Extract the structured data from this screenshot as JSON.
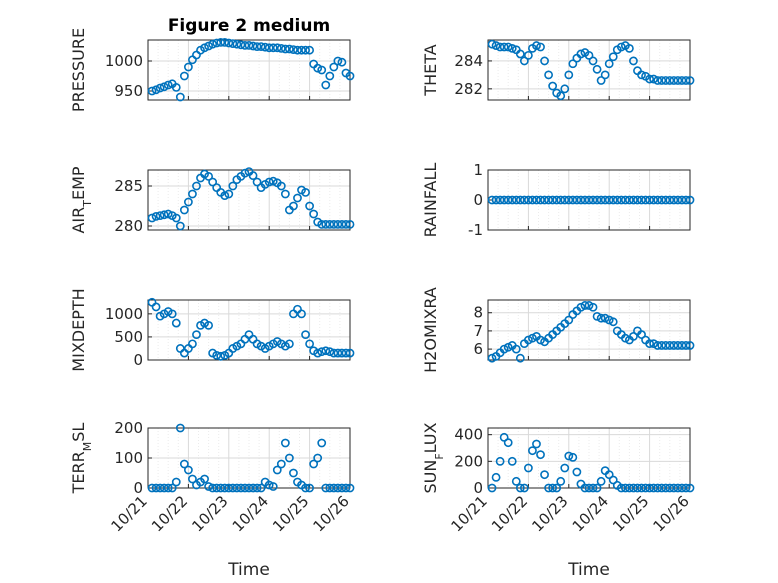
{
  "chart_data": [
    {
      "type": "scatter",
      "title": "Figure 2 medium",
      "ylabel": "PRESSURE",
      "ylim": [
        935,
        1035
      ],
      "yticks": [
        950,
        1000
      ],
      "yticklabels": [
        "950",
        "1000"
      ],
      "x": [
        0.1,
        0.2,
        0.3,
        0.4,
        0.5,
        0.6,
        0.7,
        0.8,
        0.9,
        1.0,
        1.1,
        1.2,
        1.3,
        1.4,
        1.5,
        1.6,
        1.7,
        1.8,
        1.9,
        2.0,
        2.1,
        2.2,
        2.3,
        2.4,
        2.5,
        2.6,
        2.7,
        2.8,
        2.9,
        3.0,
        3.1,
        3.2,
        3.3,
        3.4,
        3.5,
        3.6,
        3.7,
        3.8,
        3.9,
        4.0,
        4.1,
        4.2,
        4.3,
        4.4,
        4.5,
        4.6,
        4.7,
        4.8,
        4.9,
        5.0
      ],
      "series": [
        {
          "values": [
            950,
            952,
            955,
            957,
            960,
            962,
            956,
            940,
            975,
            990,
            1002,
            1010,
            1018,
            1022,
            1025,
            1028,
            1030,
            1031,
            1031,
            1030,
            1029,
            1028,
            1027,
            1026,
            1026,
            1025,
            1024,
            1024,
            1023,
            1022,
            1022,
            1022,
            1021,
            1020,
            1020,
            1019,
            1018,
            1018,
            1018,
            1018,
            995,
            988,
            985,
            960,
            975,
            990,
            1000,
            998,
            980,
            975
          ]
        }
      ]
    },
    {
      "type": "scatter",
      "ylabel": "THETA",
      "ylim": [
        281.2,
        285.5
      ],
      "yticks": [
        282,
        284
      ],
      "yticklabels": [
        "282",
        "284"
      ],
      "x": [
        0.1,
        0.2,
        0.3,
        0.4,
        0.5,
        0.6,
        0.7,
        0.8,
        0.9,
        1.0,
        1.1,
        1.2,
        1.3,
        1.4,
        1.5,
        1.6,
        1.7,
        1.8,
        1.9,
        2.0,
        2.1,
        2.2,
        2.3,
        2.4,
        2.5,
        2.6,
        2.7,
        2.8,
        2.9,
        3.0,
        3.1,
        3.2,
        3.3,
        3.4,
        3.5,
        3.6,
        3.7,
        3.8,
        3.9,
        4.0,
        4.1,
        4.2,
        4.3,
        4.4,
        4.5,
        4.6,
        4.7,
        4.8,
        4.9,
        5.0
      ],
      "series": [
        {
          "values": [
            285.2,
            285.1,
            285.0,
            285.0,
            285.0,
            284.9,
            284.8,
            284.5,
            284.0,
            284.4,
            284.9,
            285.1,
            285.0,
            284.0,
            283.0,
            282.2,
            281.7,
            281.5,
            282.0,
            283.0,
            283.8,
            284.2,
            284.5,
            284.6,
            284.4,
            284.0,
            283.4,
            282.6,
            283.0,
            283.8,
            284.3,
            284.8,
            285.0,
            285.1,
            284.9,
            284.0,
            283.3,
            283.0,
            282.9,
            282.7,
            282.7,
            282.6,
            282.6,
            282.6,
            282.6,
            282.6,
            282.6,
            282.6,
            282.6,
            282.6
          ]
        }
      ]
    },
    {
      "type": "scatter",
      "ylabel": "AIR_TEMP",
      "ylim": [
        279.5,
        287
      ],
      "yticks": [
        280,
        285
      ],
      "yticklabels": [
        "280",
        "285"
      ],
      "x": [
        0.1,
        0.2,
        0.3,
        0.4,
        0.5,
        0.6,
        0.7,
        0.8,
        0.9,
        1.0,
        1.1,
        1.2,
        1.3,
        1.4,
        1.5,
        1.6,
        1.7,
        1.8,
        1.9,
        2.0,
        2.1,
        2.2,
        2.3,
        2.4,
        2.5,
        2.6,
        2.7,
        2.8,
        2.9,
        3.0,
        3.1,
        3.2,
        3.3,
        3.4,
        3.5,
        3.6,
        3.7,
        3.8,
        3.9,
        4.0,
        4.1,
        4.2,
        4.3,
        4.4,
        4.5,
        4.6,
        4.7,
        4.8,
        4.9,
        5.0
      ],
      "series": [
        {
          "values": [
            281.0,
            281.2,
            281.3,
            281.4,
            281.5,
            281.3,
            281.0,
            280.0,
            282.0,
            283.0,
            284.0,
            285.0,
            286.0,
            286.5,
            286.2,
            285.5,
            284.8,
            284.2,
            283.8,
            284.0,
            285.0,
            285.8,
            286.2,
            286.6,
            286.8,
            286.3,
            285.5,
            284.8,
            285.2,
            285.5,
            285.6,
            285.4,
            285.0,
            284.0,
            282.0,
            282.5,
            283.5,
            284.5,
            284.2,
            282.5,
            281.5,
            280.5,
            280.2,
            280.2,
            280.2,
            280.2,
            280.2,
            280.2,
            280.2,
            280.2
          ]
        }
      ]
    },
    {
      "type": "scatter",
      "ylabel": "RAINFALL",
      "ylim": [
        -1,
        1
      ],
      "yticks": [
        -1,
        0,
        1
      ],
      "yticklabels": [
        "-1",
        "0",
        "1"
      ],
      "x": [
        0.1,
        0.2,
        0.3,
        0.4,
        0.5,
        0.6,
        0.7,
        0.8,
        0.9,
        1.0,
        1.1,
        1.2,
        1.3,
        1.4,
        1.5,
        1.6,
        1.7,
        1.8,
        1.9,
        2.0,
        2.1,
        2.2,
        2.3,
        2.4,
        2.5,
        2.6,
        2.7,
        2.8,
        2.9,
        3.0,
        3.1,
        3.2,
        3.3,
        3.4,
        3.5,
        3.6,
        3.7,
        3.8,
        3.9,
        4.0,
        4.1,
        4.2,
        4.3,
        4.4,
        4.5,
        4.6,
        4.7,
        4.8,
        4.9,
        5.0
      ],
      "series": [
        {
          "values": [
            0,
            0,
            0,
            0,
            0,
            0,
            0,
            0,
            0,
            0,
            0,
            0,
            0,
            0,
            0,
            0,
            0,
            0,
            0,
            0,
            0,
            0,
            0,
            0,
            0,
            0,
            0,
            0,
            0,
            0,
            0,
            0,
            0,
            0,
            0,
            0,
            0,
            0,
            0,
            0,
            0,
            0,
            0,
            0,
            0,
            0,
            0,
            0,
            0,
            0
          ]
        }
      ]
    },
    {
      "type": "scatter",
      "ylabel": "MIXDEPTH",
      "ylim": [
        0,
        1300
      ],
      "yticks": [
        0,
        500,
        1000
      ],
      "yticklabels": [
        "0",
        "500",
        "1000"
      ],
      "x": [
        0.1,
        0.2,
        0.3,
        0.4,
        0.5,
        0.6,
        0.7,
        0.8,
        0.9,
        1.0,
        1.1,
        1.2,
        1.3,
        1.4,
        1.5,
        1.6,
        1.7,
        1.8,
        1.9,
        2.0,
        2.1,
        2.2,
        2.3,
        2.4,
        2.5,
        2.6,
        2.7,
        2.8,
        2.9,
        3.0,
        3.1,
        3.2,
        3.3,
        3.4,
        3.5,
        3.6,
        3.7,
        3.8,
        3.9,
        4.0,
        4.1,
        4.2,
        4.3,
        4.4,
        4.5,
        4.6,
        4.7,
        4.8,
        4.9,
        5.0
      ],
      "series": [
        {
          "values": [
            1250,
            1150,
            950,
            1000,
            1050,
            1000,
            800,
            250,
            150,
            250,
            350,
            550,
            750,
            800,
            750,
            150,
            100,
            80,
            100,
            150,
            250,
            300,
            350,
            450,
            550,
            450,
            350,
            300,
            250,
            300,
            350,
            400,
            350,
            300,
            350,
            1000,
            1100,
            1000,
            550,
            350,
            200,
            150,
            180,
            200,
            180,
            150,
            150,
            150,
            150,
            150
          ]
        }
      ]
    },
    {
      "type": "scatter",
      "ylabel": "H2OMIXRA",
      "ylim": [
        5.4,
        8.7
      ],
      "yticks": [
        6,
        7,
        8
      ],
      "yticklabels": [
        "6",
        "7",
        "8"
      ],
      "x": [
        0.1,
        0.2,
        0.3,
        0.4,
        0.5,
        0.6,
        0.7,
        0.8,
        0.9,
        1.0,
        1.1,
        1.2,
        1.3,
        1.4,
        1.5,
        1.6,
        1.7,
        1.8,
        1.9,
        2.0,
        2.1,
        2.2,
        2.3,
        2.4,
        2.5,
        2.6,
        2.7,
        2.8,
        2.9,
        3.0,
        3.1,
        3.2,
        3.3,
        3.4,
        3.5,
        3.6,
        3.7,
        3.8,
        3.9,
        4.0,
        4.1,
        4.2,
        4.3,
        4.4,
        4.5,
        4.6,
        4.7,
        4.8,
        4.9,
        5.0
      ],
      "series": [
        {
          "values": [
            5.5,
            5.6,
            5.8,
            6.0,
            6.1,
            6.2,
            6.0,
            5.5,
            6.3,
            6.5,
            6.6,
            6.7,
            6.5,
            6.4,
            6.6,
            6.8,
            7.0,
            7.2,
            7.4,
            7.6,
            7.9,
            8.1,
            8.3,
            8.4,
            8.4,
            8.3,
            7.8,
            7.7,
            7.7,
            7.6,
            7.5,
            7.0,
            6.8,
            6.6,
            6.5,
            6.7,
            7.0,
            6.8,
            6.5,
            6.3,
            6.3,
            6.2,
            6.2,
            6.2,
            6.2,
            6.2,
            6.2,
            6.2,
            6.2,
            6.2
          ]
        }
      ]
    },
    {
      "type": "scatter",
      "ylabel": "TERR_MSL",
      "xlabel": "Time",
      "ylim": [
        0,
        200
      ],
      "yticks": [
        0,
        100,
        200
      ],
      "yticklabels": [
        "0",
        "100",
        "200"
      ],
      "xlim": [
        0,
        5
      ],
      "xticks": [
        0,
        1,
        2,
        3,
        4,
        5
      ],
      "xticklabels": [
        "10/21",
        "10/22",
        "10/23",
        "10/24",
        "10/25",
        "10/26"
      ],
      "x": [
        0.1,
        0.2,
        0.3,
        0.4,
        0.5,
        0.6,
        0.7,
        0.8,
        0.9,
        1.0,
        1.1,
        1.2,
        1.3,
        1.4,
        1.5,
        1.6,
        1.7,
        1.8,
        1.9,
        2.0,
        2.1,
        2.2,
        2.3,
        2.4,
        2.5,
        2.6,
        2.7,
        2.8,
        2.9,
        3.0,
        3.1,
        3.2,
        3.3,
        3.4,
        3.5,
        3.6,
        3.7,
        3.8,
        3.9,
        4.0,
        4.1,
        4.2,
        4.3,
        4.4,
        4.5,
        4.6,
        4.7,
        4.8,
        4.9,
        5.0
      ],
      "series": [
        {
          "values": [
            0,
            0,
            0,
            0,
            0,
            0,
            20,
            200,
            80,
            60,
            30,
            10,
            20,
            30,
            5,
            0,
            0,
            0,
            0,
            0,
            0,
            0,
            0,
            0,
            0,
            0,
            0,
            0,
            20,
            10,
            5,
            60,
            80,
            150,
            100,
            50,
            20,
            10,
            0,
            0,
            80,
            100,
            150,
            0,
            0,
            0,
            0,
            0,
            0,
            0
          ]
        }
      ]
    },
    {
      "type": "scatter",
      "ylabel": "SUN_FLUX",
      "xlabel": "Time",
      "ylim": [
        0,
        450
      ],
      "yticks": [
        0,
        200,
        400
      ],
      "yticklabels": [
        "0",
        "200",
        "400"
      ],
      "xlim": [
        0,
        5
      ],
      "xticks": [
        0,
        1,
        2,
        3,
        4,
        5
      ],
      "xticklabels": [
        "10/21",
        "10/22",
        "10/23",
        "10/24",
        "10/25",
        "10/26"
      ],
      "x": [
        0.1,
        0.2,
        0.3,
        0.4,
        0.5,
        0.6,
        0.7,
        0.8,
        0.9,
        1.0,
        1.1,
        1.2,
        1.3,
        1.4,
        1.5,
        1.6,
        1.7,
        1.8,
        1.9,
        2.0,
        2.1,
        2.2,
        2.3,
        2.4,
        2.5,
        2.6,
        2.7,
        2.8,
        2.9,
        3.0,
        3.1,
        3.2,
        3.3,
        3.4,
        3.5,
        3.6,
        3.7,
        3.8,
        3.9,
        4.0,
        4.1,
        4.2,
        4.3,
        4.4,
        4.5,
        4.6,
        4.7,
        4.8,
        4.9,
        5.0
      ],
      "series": [
        {
          "values": [
            0,
            80,
            200,
            380,
            340,
            200,
            50,
            0,
            0,
            150,
            280,
            330,
            250,
            100,
            0,
            0,
            0,
            50,
            150,
            240,
            230,
            120,
            30,
            0,
            0,
            0,
            0,
            50,
            130,
            100,
            60,
            20,
            0,
            0,
            0,
            0,
            0,
            0,
            0,
            0,
            0,
            0,
            0,
            0,
            0,
            0,
            0,
            0,
            0,
            0
          ]
        }
      ]
    }
  ]
}
